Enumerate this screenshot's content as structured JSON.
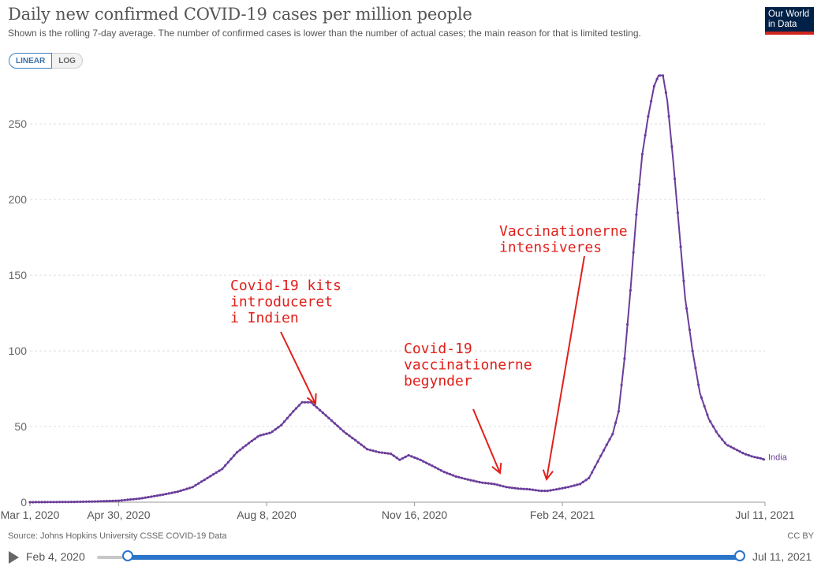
{
  "header": {
    "title": "Daily new confirmed COVID-19 cases per million people",
    "subtitle": "Shown is the rolling 7-day average. The number of confirmed cases is lower than the number of actual cases; the main reason for that is limited testing.",
    "logo_line1": "Our World",
    "logo_line2": "in Data"
  },
  "scale_toggle": {
    "linear": "LINEAR",
    "log": "LOG",
    "selected": "LINEAR"
  },
  "footer": {
    "source": "Source: Johns Hopkins University CSSE COVID-19 Data",
    "license": "CC BY"
  },
  "timeline": {
    "start_label": "Feb 4, 2020",
    "end_label": "Jul 11, 2021"
  },
  "colors": {
    "series": "#6a3d9a",
    "annotation": "#e0201b",
    "grid": "#dddddd"
  },
  "chart_data": {
    "type": "line",
    "title": "Daily new confirmed COVID-19 cases per million people",
    "x_unit": "days since Mar 1, 2020",
    "xlim": [
      0,
      497
    ],
    "ylim": [
      0,
      285
    ],
    "yticks": [
      0,
      50,
      100,
      150,
      200,
      250
    ],
    "xticks": [
      {
        "day": 0,
        "label": "Mar 1, 2020"
      },
      {
        "day": 60,
        "label": "Apr 30, 2020"
      },
      {
        "day": 160,
        "label": "Aug 8, 2020"
      },
      {
        "day": 260,
        "label": "Nov 16, 2020"
      },
      {
        "day": 360,
        "label": "Feb 24, 2021"
      },
      {
        "day": 497,
        "label": "Jul 11, 2021"
      }
    ],
    "grid": true,
    "series": [
      {
        "name": "India",
        "points": [
          [
            0,
            0
          ],
          [
            30,
            0.2
          ],
          [
            45,
            0.5
          ],
          [
            60,
            1
          ],
          [
            75,
            2.5
          ],
          [
            90,
            5
          ],
          [
            100,
            7
          ],
          [
            110,
            10
          ],
          [
            120,
            16
          ],
          [
            130,
            22
          ],
          [
            140,
            33
          ],
          [
            148,
            39
          ],
          [
            155,
            44
          ],
          [
            163,
            46
          ],
          [
            170,
            51
          ],
          [
            178,
            60
          ],
          [
            184,
            66
          ],
          [
            190,
            66
          ],
          [
            197,
            60
          ],
          [
            205,
            53
          ],
          [
            213,
            46
          ],
          [
            220,
            41
          ],
          [
            228,
            35
          ],
          [
            236,
            33
          ],
          [
            244,
            32
          ],
          [
            250,
            28
          ],
          [
            256,
            31
          ],
          [
            264,
            28
          ],
          [
            272,
            24
          ],
          [
            280,
            20
          ],
          [
            288,
            17
          ],
          [
            296,
            15
          ],
          [
            305,
            13
          ],
          [
            314,
            12
          ],
          [
            322,
            10
          ],
          [
            330,
            9
          ],
          [
            338,
            8.5
          ],
          [
            345,
            7.5
          ],
          [
            350,
            7.5
          ],
          [
            356,
            8.5
          ],
          [
            364,
            10
          ],
          [
            372,
            12
          ],
          [
            378,
            16
          ],
          [
            384,
            27
          ],
          [
            390,
            38
          ],
          [
            394,
            45
          ],
          [
            398,
            60
          ],
          [
            402,
            95
          ],
          [
            406,
            140
          ],
          [
            410,
            190
          ],
          [
            414,
            230
          ],
          [
            418,
            255
          ],
          [
            422,
            275
          ],
          [
            425,
            282
          ],
          [
            428,
            282
          ],
          [
            431,
            265
          ],
          [
            435,
            225
          ],
          [
            439,
            180
          ],
          [
            443,
            135
          ],
          [
            448,
            100
          ],
          [
            453,
            72
          ],
          [
            459,
            55
          ],
          [
            465,
            45
          ],
          [
            471,
            38
          ],
          [
            477,
            35
          ],
          [
            483,
            32
          ],
          [
            489,
            30
          ],
          [
            494,
            29
          ],
          [
            497,
            28
          ]
        ]
      }
    ],
    "end_label": "India",
    "annotations": [
      {
        "lines": [
          "Covid-19 kits",
          "introduceret",
          "i Indien"
        ],
        "target_day": 184
      },
      {
        "lines": [
          "Covid-19",
          "vaccinationerne",
          "begynder"
        ],
        "target_day": 320
      },
      {
        "lines": [
          "Vaccinationerne",
          "intensiveres"
        ],
        "target_day": 348
      }
    ]
  }
}
